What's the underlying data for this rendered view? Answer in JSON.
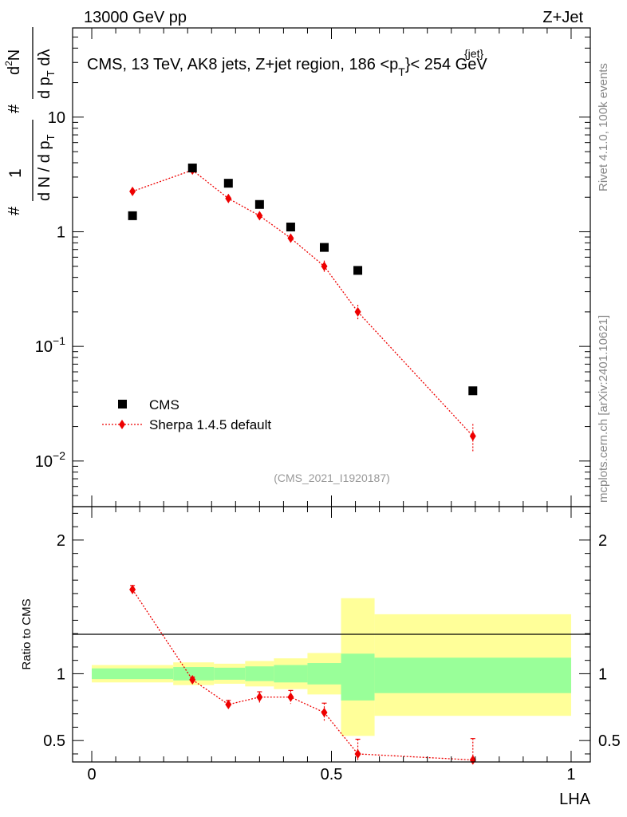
{
  "header": {
    "left": "13000 GeV pp",
    "right": "Z+Jet"
  },
  "side_labels": {
    "rivet": "Rivet 4.1.0,  100k events",
    "mcplots": "mcplots.cern.ch [arXiv:2401.10621]"
  },
  "colors": {
    "data": "#000000",
    "mc": "#ee0000",
    "band_inner": "#99ff99",
    "band_outer": "#ffff99"
  },
  "chart_data": [
    {
      "type": "scatter",
      "panel": "main",
      "title": "CMS, 13 TeV, AK8 jets, Z+jet region, 186 <p",
      "title_sup": "{jet}",
      "title_sub": "T",
      "title_tail": "}< 254 GeV",
      "ylabel": {
        "num_top": "d",
        "num_sup": "2",
        "num_rest": "N",
        "num_hash": "#",
        "num_den": "d p",
        "num_den_sub": "T",
        "num_den_tail": " dλ",
        "frac_hash": "#",
        "frac_num": "1",
        "frac_den": "d N / d p",
        "frac_den_sub": "T"
      },
      "yscale": "log",
      "ylim": [
        0.004,
        60
      ],
      "xlim": [
        -0.04,
        1.04
      ],
      "y_tick_labels": [
        {
          "value": 10,
          "base": "10",
          "exp": ""
        },
        {
          "value": 1,
          "base": "1",
          "exp": ""
        },
        {
          "value": 0.1,
          "base": "10",
          "exp": "−1"
        },
        {
          "value": 0.01,
          "base": "10",
          "exp": "−2"
        }
      ],
      "legend": [
        {
          "label": "CMS",
          "marker": "square"
        },
        {
          "label": "Sherpa 1.4.5 default",
          "marker": "diamond"
        }
      ],
      "watermark": "(CMS_2021_I1920187)",
      "series": [
        {
          "name": "CMS",
          "x": [
            0.085,
            0.21,
            0.285,
            0.35,
            0.415,
            0.485,
            0.555,
            0.795
          ],
          "y": [
            1.38,
            3.6,
            2.65,
            1.73,
            1.1,
            0.73,
            0.46,
            0.041
          ]
        },
        {
          "name": "Sherpa 1.4.5 default",
          "x": [
            0.085,
            0.21,
            0.285,
            0.35,
            0.415,
            0.485,
            0.555,
            0.795
          ],
          "y": [
            2.25,
            3.45,
            1.95,
            1.38,
            0.88,
            0.5,
            0.2,
            0.0165
          ],
          "err": [
            0.12,
            0.18,
            0.1,
            0.09,
            0.07,
            0.06,
            0.03,
            0.0045
          ]
        }
      ]
    },
    {
      "type": "scatter",
      "panel": "ratio",
      "ylabel": "Ratio to CMS",
      "xlabel": "LHA",
      "yscale": "linear",
      "ylim": [
        0.34,
        2.25
      ],
      "xlim": [
        -0.04,
        1.04
      ],
      "x_tick_labels": [
        "0",
        "0.5",
        "1"
      ],
      "x_ticks": [
        0,
        0.5,
        1
      ],
      "y_tick_labels": [
        "2",
        "1",
        "0.5"
      ],
      "y_ticks": [
        2,
        1,
        0.5
      ],
      "bands": {
        "edges": [
          0.0,
          0.17,
          0.255,
          0.32,
          0.38,
          0.45,
          0.52,
          0.59,
          1.0
        ],
        "inner_lo": [
          0.96,
          0.95,
          0.955,
          0.945,
          0.935,
          0.92,
          0.8,
          0.855
        ],
        "inner_hi": [
          1.04,
          1.05,
          1.045,
          1.055,
          1.065,
          1.08,
          1.15,
          1.12
        ],
        "outer_lo": [
          0.935,
          0.915,
          0.925,
          0.905,
          0.885,
          0.845,
          0.535,
          0.685
        ],
        "outer_hi": [
          1.065,
          1.085,
          1.075,
          1.095,
          1.115,
          1.155,
          1.565,
          1.445
        ]
      },
      "series": [
        {
          "name": "Sherpa 1.4.5 default",
          "x": [
            0.085,
            0.21,
            0.285,
            0.35,
            0.415,
            0.485,
            0.555,
            0.795
          ],
          "y": [
            1.63,
            0.955,
            0.77,
            0.825,
            0.825,
            0.71,
            0.4,
            0.355
          ],
          "err": [
            0.03,
            0.02,
            0.03,
            0.04,
            0.05,
            0.07,
            0.11,
            0.16
          ]
        }
      ]
    }
  ]
}
